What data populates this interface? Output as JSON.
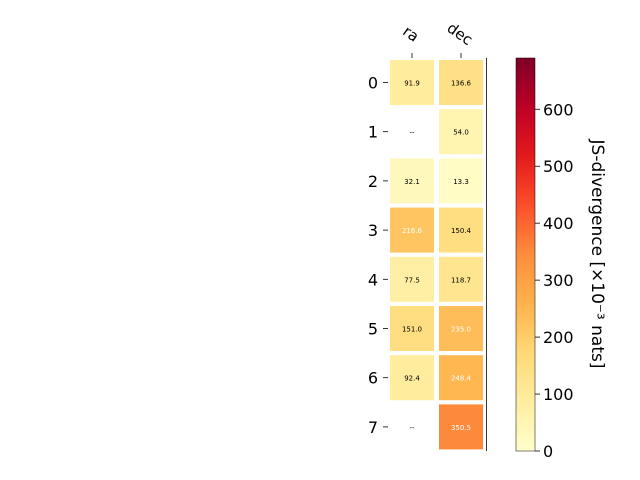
{
  "chart_data": {
    "type": "heatmap",
    "columns": [
      "ra",
      "dec"
    ],
    "rows": [
      "0",
      "1",
      "2",
      "3",
      "4",
      "5",
      "6",
      "7"
    ],
    "values": [
      [
        91.9,
        136.6
      ],
      [
        null,
        54.0
      ],
      [
        32.1,
        13.3
      ],
      [
        216.6,
        150.4
      ],
      [
        77.5,
        118.7
      ],
      [
        151.0,
        235.0
      ],
      [
        92.4,
        248.4
      ],
      [
        null,
        350.5
      ]
    ],
    "cell_labels": [
      [
        "91.9",
        "136.6"
      ],
      [
        "--",
        "54.0"
      ],
      [
        "32.1",
        "13.3"
      ],
      [
        "216.6",
        "150.4"
      ],
      [
        "77.5",
        "118.7"
      ],
      [
        "151.0",
        "235.0"
      ],
      [
        "92.4",
        "248.4"
      ],
      [
        "--",
        "350.5"
      ]
    ],
    "missing_label": "--",
    "colorbar": {
      "label": "JS-divergence [×10⁻³ nats]",
      "range": [
        0,
        690
      ],
      "ticks": [
        0,
        100,
        200,
        300,
        400,
        500,
        600
      ],
      "tick_labels": [
        "0",
        "100",
        "200",
        "300",
        "400",
        "500",
        "600"
      ],
      "colormap": "YlOrRd"
    },
    "grid": false
  }
}
